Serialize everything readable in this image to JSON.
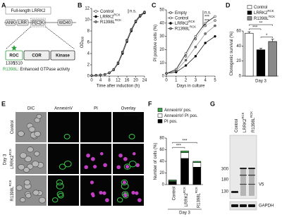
{
  "panel_a": {
    "label": "A",
    "title": "Full-length LRRK2",
    "domains": [
      "ANK",
      "LRR",
      "R",
      "C",
      "K",
      "WD40"
    ],
    "zoom_domains": [
      "ROC",
      "COR",
      "Kinase"
    ],
    "positions": [
      "1335",
      "1510"
    ],
    "mutation": "R1398L",
    "mutation_note": ": Enhanced GTPase activity"
  },
  "chart_data": [
    {
      "type": "line",
      "panel_label": "B",
      "y_label": "OD",
      "y_label_sub": "600",
      "x_label": "Time after induction (h)",
      "x": [
        0,
        2,
        4,
        6,
        8,
        10,
        12,
        14,
        16,
        18,
        20,
        22,
        24
      ],
      "xlim": [
        0,
        24
      ],
      "xticks": [
        0,
        4,
        8,
        12,
        16,
        20,
        24
      ],
      "ylim": [
        0,
        12
      ],
      "yticks": [
        0,
        2,
        4,
        6,
        8,
        10,
        12
      ],
      "series": [
        {
          "name": "Control",
          "name_sup": null,
          "color": "#ffffff",
          "values": [
            0.1,
            0.15,
            0.2,
            0.3,
            0.6,
            1.2,
            2.4,
            4.3,
            6.4,
            8.3,
            9.8,
            10.8,
            11.4
          ]
        },
        {
          "name": "LRRK2",
          "name_sup": "RCK",
          "color": "#000000",
          "values": [
            0.1,
            0.15,
            0.2,
            0.3,
            0.55,
            1.1,
            2.2,
            4.0,
            6.1,
            8.0,
            9.6,
            10.6,
            11.2
          ]
        },
        {
          "name": "R1398L",
          "name_sup": "RCK",
          "color": "#8a8a8a",
          "values": [
            0.1,
            0.15,
            0.2,
            0.3,
            0.6,
            1.15,
            2.3,
            4.2,
            6.3,
            8.2,
            9.7,
            10.7,
            11.3
          ]
        }
      ],
      "annotations": [
        "n.s."
      ]
    },
    {
      "type": "line",
      "panel_label": "C",
      "y_label": "PI positive cells (%)",
      "x_label": "Days in culture",
      "x": [
        0,
        1,
        2,
        3,
        4,
        5
      ],
      "xlim": [
        0,
        5
      ],
      "xticks": [
        0,
        1,
        2,
        3,
        4,
        5
      ],
      "ylim": [
        0,
        50
      ],
      "yticks": [
        0,
        10,
        20,
        30,
        40,
        50
      ],
      "series": [
        {
          "name": "Empty",
          "name_sup": null,
          "color": "#d0d0d0",
          "values": [
            2,
            5,
            15,
            28,
            38,
            42
          ]
        },
        {
          "name": "Control",
          "name_sup": null,
          "color": "#ffffff",
          "values": [
            2,
            5,
            17,
            30,
            40,
            45
          ]
        },
        {
          "name": "LRRK2",
          "name_sup": "RCK",
          "color": "#000000",
          "values": [
            2,
            3,
            8,
            15,
            25,
            30
          ]
        },
        {
          "name": "R1398L",
          "name_sup": "RCK",
          "color": "#8a8a8a",
          "values": [
            2,
            4,
            12,
            22,
            32,
            38
          ]
        }
      ],
      "annotations": [
        "n.s.",
        "***",
        "***",
        "*"
      ]
    },
    {
      "type": "bar",
      "panel_label": "D",
      "y_label": "Clonogenic survival (%)",
      "group_label": "Day 3",
      "ylim": [
        0,
        60
      ],
      "yticks": [
        0,
        20,
        40,
        60
      ],
      "series": [
        {
          "name": "Control",
          "name_sup": null,
          "color": "#ffffff",
          "values": [
            57
          ],
          "errors": [
            2
          ]
        },
        {
          "name": "LRRK2",
          "name_sup": "RCK",
          "color": "#000000",
          "values": [
            35
          ],
          "errors": [
            2
          ]
        },
        {
          "name": "R1398L",
          "name_sup": "RCK",
          "color": "#8a8a8a",
          "values": [
            46
          ],
          "errors": [
            3
          ]
        }
      ],
      "annotations": [
        "***",
        "*",
        "**"
      ]
    },
    {
      "type": "stacked_bar",
      "panel_label": "F",
      "y_label": "Number of cells (%)",
      "group_label": "Day 3",
      "ylim": [
        0,
        80
      ],
      "yticks": [
        0,
        20,
        40,
        60,
        80
      ],
      "categories": [
        "Control",
        "LRRK2",
        "R1398L"
      ],
      "category_sups": [
        null,
        "RCK",
        "RCK"
      ],
      "series": [
        {
          "name": "AnnexinV pos.",
          "color": "#3fa34d",
          "values": [
            2,
            3,
            2
          ]
        },
        {
          "name": "AnnexinV/ PI pos.",
          "color": "#ffffff",
          "values": [
            1,
            10,
            8
          ]
        },
        {
          "name": "PI pos.",
          "color": "#000000",
          "values": [
            5,
            45,
            30
          ]
        }
      ],
      "annotations": [
        "***",
        "***"
      ]
    }
  ],
  "panel_e": {
    "label": "E",
    "columns": [
      "DIC",
      "AnnexinV",
      "PI",
      "Overlay"
    ],
    "rows": [
      {
        "name": "Control",
        "sup": null
      },
      {
        "name": "LRRK2",
        "sup": "RCK"
      },
      {
        "name": "R1398L",
        "sup": "RCK"
      }
    ],
    "day": "Day 3",
    "overlay_legend": [
      "AnnexinV",
      "PI"
    ]
  },
  "panel_g": {
    "label": "G",
    "lanes": [
      {
        "name": "Control",
        "sup": null
      },
      {
        "name": "LRRK2",
        "sup": "RCK"
      },
      {
        "name": "R1398L",
        "sup": "RCK"
      }
    ],
    "markers": [
      "300",
      "180",
      "130"
    ],
    "bands": [
      "V5",
      "GAPDH"
    ]
  }
}
